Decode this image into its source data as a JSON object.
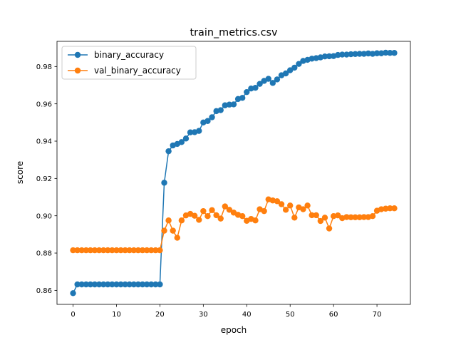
{
  "chart_data": {
    "type": "line",
    "title": "train_metrics.csv",
    "xlabel": "epoch",
    "ylabel": "score",
    "xlim": [
      -3.7,
      77.7
    ],
    "ylim": [
      0.8525,
      0.9935
    ],
    "x_ticks": [
      0,
      10,
      20,
      30,
      40,
      50,
      60,
      70
    ],
    "y_ticks": [
      0.86,
      0.88,
      0.9,
      0.92,
      0.94,
      0.96,
      0.98
    ],
    "grid": false,
    "legend_position": "upper-left",
    "x": [
      0,
      1,
      2,
      3,
      4,
      5,
      6,
      7,
      8,
      9,
      10,
      11,
      12,
      13,
      14,
      15,
      16,
      17,
      18,
      19,
      20,
      21,
      22,
      23,
      24,
      25,
      26,
      27,
      28,
      29,
      30,
      31,
      32,
      33,
      34,
      35,
      36,
      37,
      38,
      39,
      40,
      41,
      42,
      43,
      44,
      45,
      46,
      47,
      48,
      49,
      50,
      51,
      52,
      53,
      54,
      55,
      56,
      57,
      58,
      59,
      60,
      61,
      62,
      63,
      64,
      65,
      66,
      67,
      68,
      69,
      70,
      71,
      72,
      73,
      74
    ],
    "series": [
      {
        "name": "binary_accuracy",
        "color": "#1f77b4",
        "values": [
          0.8585,
          0.8632,
          0.8632,
          0.8632,
          0.8632,
          0.8632,
          0.8632,
          0.8632,
          0.8632,
          0.8632,
          0.8632,
          0.8632,
          0.8632,
          0.8632,
          0.8632,
          0.8632,
          0.8632,
          0.8632,
          0.8632,
          0.8632,
          0.8632,
          0.9177,
          0.9346,
          0.9377,
          0.9385,
          0.9395,
          0.9414,
          0.9447,
          0.9448,
          0.9455,
          0.95,
          0.9508,
          0.9528,
          0.9561,
          0.9566,
          0.9592,
          0.9596,
          0.9597,
          0.9626,
          0.9632,
          0.9663,
          0.9682,
          0.9686,
          0.9707,
          0.9723,
          0.9734,
          0.9712,
          0.9731,
          0.9753,
          0.9763,
          0.978,
          0.9794,
          0.9814,
          0.983,
          0.9836,
          0.9842,
          0.9845,
          0.9849,
          0.9854,
          0.9855,
          0.9856,
          0.9862,
          0.9864,
          0.9864,
          0.9866,
          0.9867,
          0.9868,
          0.9868,
          0.987,
          0.9868,
          0.9871,
          0.9871,
          0.9874,
          0.9873,
          0.9873
        ]
      },
      {
        "name": "val_binary_accuracy",
        "color": "#ff7f0e",
        "values": [
          0.8815,
          0.8815,
          0.8815,
          0.8815,
          0.8815,
          0.8815,
          0.8815,
          0.8815,
          0.8815,
          0.8815,
          0.8815,
          0.8815,
          0.8815,
          0.8815,
          0.8815,
          0.8815,
          0.8815,
          0.8815,
          0.8815,
          0.8815,
          0.8815,
          0.892,
          0.8975,
          0.892,
          0.8882,
          0.8975,
          0.9002,
          0.901,
          0.9,
          0.8978,
          0.9025,
          0.8998,
          0.903,
          0.9003,
          0.8985,
          0.905,
          0.9032,
          0.9017,
          0.9005,
          0.8998,
          0.8973,
          0.8983,
          0.8975,
          0.9035,
          0.9025,
          0.9088,
          0.9082,
          0.9078,
          0.9062,
          0.9032,
          0.9055,
          0.899,
          0.9045,
          0.9035,
          0.9055,
          0.9003,
          0.9003,
          0.8972,
          0.899,
          0.8932,
          0.8998,
          0.9002,
          0.8987,
          0.8993,
          0.8992,
          0.8992,
          0.8992,
          0.8993,
          0.8993,
          0.8998,
          0.9027,
          0.9035,
          0.9038,
          0.904,
          0.904
        ]
      }
    ]
  }
}
